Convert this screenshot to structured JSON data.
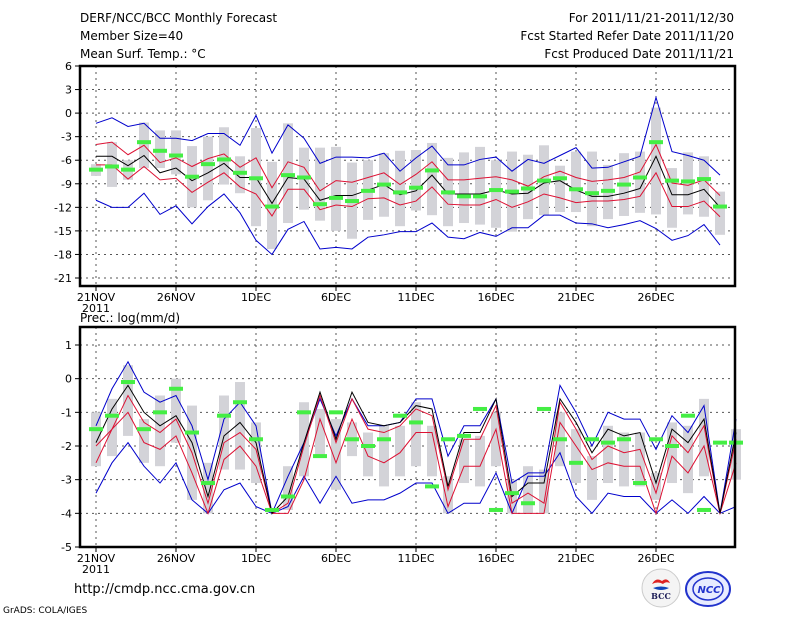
{
  "header": {
    "title": "DERF/NCC/BCC Monthly Forecast",
    "member_size": "Member Size=40",
    "period": "For 2011/11/21-2011/12/30",
    "started_date": "Fcst Started Refer Date 2011/11/20",
    "produced_date": "Fcst Produced Date 2011/11/21"
  },
  "footer": {
    "url": "http://cmdp.ncc.cma.gov.cn",
    "credit": "GrADS: COLA/IGES",
    "logos": [
      {
        "name": "bcc-logo",
        "text": "BCC"
      },
      {
        "name": "ncc-logo",
        "text": "NCC"
      }
    ]
  },
  "colors": {
    "range": "#0000cc",
    "quartile": "#dd1133",
    "median": "#000000",
    "box": "#d3d3d8",
    "marker": "#44ee44",
    "grid": "#555555"
  },
  "chart_data": [
    {
      "type": "line",
      "title": "Mean Surf. Temp.: °C",
      "xlabel": "",
      "ylabel": "°C",
      "ylim": [
        -21,
        6
      ],
      "yticks": [
        6,
        3,
        0,
        -3,
        -6,
        -9,
        -12,
        -15,
        -18,
        -21
      ],
      "xtick_labels": [
        "21NOV",
        "26NOV",
        "1DEC",
        "6DEC",
        "11DEC",
        "16DEC",
        "21DEC",
        "26DEC"
      ],
      "xtick_year": "2011",
      "x_start": "2011-11-21",
      "days": 39,
      "grid": true,
      "series": [
        {
          "name": "max",
          "values": [
            -1.3,
            -0.6,
            -1.7,
            -1.3,
            -3.2,
            -3.2,
            -3.5,
            -2.6,
            -2.6,
            -4.1,
            -0.3,
            -5.1,
            -1.5,
            -3.2,
            -6.4,
            -5.6,
            -5.6,
            -5.7,
            -5.1,
            -7.4,
            -5.7,
            -4.2,
            -6.6,
            -6.6,
            -5.9,
            -5.6,
            -7.4,
            -5.9,
            -6.4,
            -5.4,
            -4.4,
            -7.0,
            -6.9,
            -6.2,
            -5.5,
            2.0,
            -4.9,
            -5.4,
            -6.0,
            -7.9
          ]
        },
        {
          "name": "q75",
          "values": [
            -4.0,
            -3.7,
            -5.3,
            -4.1,
            -6.3,
            -5.7,
            -6.8,
            -5.8,
            -5.2,
            -6.9,
            -5.7,
            -9.5,
            -6.2,
            -6.9,
            -9.9,
            -8.6,
            -8.8,
            -8.2,
            -7.6,
            -9.1,
            -7.8,
            -6.2,
            -8.5,
            -8.5,
            -8.3,
            -8.1,
            -8.5,
            -9.3,
            -8.1,
            -7.4,
            -8.2,
            -8.7,
            -8.5,
            -8.2,
            -7.5,
            -4.0,
            -8.9,
            -9.2,
            -8.5,
            -10.5
          ]
        },
        {
          "name": "median",
          "values": [
            -5.5,
            -5.5,
            -6.7,
            -5.4,
            -7.6,
            -7.0,
            -8.6,
            -7.6,
            -6.4,
            -8.2,
            -8.2,
            -11.5,
            -8.2,
            -8.4,
            -11.1,
            -10.5,
            -10.5,
            -9.8,
            -9.1,
            -10.4,
            -9.9,
            -7.9,
            -10.3,
            -10.3,
            -10.3,
            -9.8,
            -10.3,
            -10.2,
            -8.9,
            -8.6,
            -9.8,
            -10.6,
            -10.6,
            -10.2,
            -9.6,
            -5.5,
            -10.4,
            -10.4,
            -9.7,
            -12.0
          ]
        },
        {
          "name": "q25",
          "values": [
            -6.6,
            -6.6,
            -8.4,
            -6.8,
            -8.5,
            -8.3,
            -10.1,
            -8.8,
            -7.6,
            -9.4,
            -10.3,
            -13.1,
            -9.7,
            -9.7,
            -12.3,
            -11.7,
            -11.9,
            -10.9,
            -10.8,
            -11.7,
            -11.2,
            -9.4,
            -11.6,
            -11.7,
            -11.7,
            -11.0,
            -12.0,
            -11.3,
            -10.3,
            -10.8,
            -11.4,
            -11.2,
            -11.2,
            -11.0,
            -10.6,
            -7.6,
            -11.9,
            -11.9,
            -11.2,
            -13.2
          ]
        },
        {
          "name": "min",
          "values": [
            -11.1,
            -12.0,
            -12.0,
            -10.2,
            -12.9,
            -11.8,
            -14.1,
            -11.9,
            -10.3,
            -12.7,
            -16.2,
            -18.0,
            -14.8,
            -13.8,
            -17.3,
            -17.1,
            -17.3,
            -15.8,
            -15.5,
            -15.1,
            -15.1,
            -14.0,
            -15.8,
            -16.0,
            -15.2,
            -15.7,
            -14.6,
            -14.6,
            -13.0,
            -13.0,
            -14.0,
            -14.1,
            -14.6,
            -14.2,
            -13.7,
            -14.7,
            -16.2,
            -15.6,
            -14.2,
            -16.8
          ]
        },
        {
          "name": "ensemble_box_top",
          "values": [
            -6.5,
            -3.7,
            -6.0,
            -1.2,
            -2.2,
            -2.2,
            -4.2,
            -3.0,
            -1.8,
            -5.5,
            -1.9,
            -6.2,
            -1.3,
            -4.4,
            -4.4,
            -4.3,
            -6.3,
            -6.0,
            -5.1,
            -4.8,
            -4.7,
            -3.8,
            -5.7,
            -5.0,
            -4.3,
            -6.0,
            -4.9,
            -5.3,
            -4.1,
            -6.7,
            -4.9,
            -4.9,
            -6.6,
            -5.1,
            -4.9,
            0.7,
            -7.0,
            -5.0,
            -5.5,
            -10.0
          ]
        },
        {
          "name": "ensemble_box_bottom",
          "values": [
            -8.0,
            -9.4,
            -8.5,
            -7.0,
            -7.0,
            -7.8,
            -12.0,
            -11.1,
            -9.1,
            -10.2,
            -14.4,
            -17.3,
            -14.0,
            -12.3,
            -13.7,
            -15.0,
            -16.0,
            -13.6,
            -13.2,
            -14.4,
            -12.4,
            -13.0,
            -14.4,
            -14.0,
            -14.2,
            -14.6,
            -15.1,
            -13.5,
            -13.0,
            -12.6,
            -12.6,
            -14.4,
            -13.5,
            -13.1,
            -12.7,
            -12.9,
            -14.6,
            -12.9,
            -13.2,
            -15.5
          ]
        },
        {
          "name": "observed_marker",
          "values": [
            -7.2,
            -6.8,
            -7.2,
            -3.7,
            -4.8,
            -5.4,
            -8.1,
            -6.5,
            -5.9,
            -7.6,
            -8.3,
            -11.9,
            -7.9,
            -8.2,
            -11.6,
            -10.8,
            -11.2,
            -9.9,
            -9.1,
            -10.1,
            -9.5,
            -7.3,
            -10.1,
            -10.6,
            -10.6,
            -9.8,
            -10.0,
            -9.6,
            -8.6,
            -8.3,
            -9.7,
            -10.2,
            -9.9,
            -9.1,
            -8.2,
            -3.7,
            -8.6,
            -8.7,
            -8.4,
            -11.9
          ]
        }
      ]
    },
    {
      "type": "line",
      "title": "Prec.: log(mm/d)",
      "xlabel": "",
      "ylabel": "log(mm/d)",
      "ylim": [
        -5,
        1.4
      ],
      "yticks": [
        1,
        0,
        -1,
        -2,
        -3,
        -4,
        -5
      ],
      "xtick_labels": [
        "21NOV",
        "26NOV",
        "1DEC",
        "6DEC",
        "11DEC",
        "16DEC",
        "21DEC",
        "26DEC"
      ],
      "xtick_year": "2011",
      "x_start": "2011-11-21",
      "days": 39,
      "grid": true,
      "series": [
        {
          "name": "max",
          "values": [
            -1.4,
            -0.3,
            0.5,
            -0.4,
            -0.7,
            -0.5,
            -1.4,
            -3.0,
            -1.2,
            -0.7,
            -1.4,
            -4.0,
            -2.9,
            -1.9,
            -0.6,
            -1.7,
            -0.6,
            -1.4,
            -1.4,
            -1.3,
            -0.6,
            -0.6,
            -2.3,
            -1.4,
            -1.4,
            -0.6,
            -3.1,
            -2.8,
            -2.8,
            -0.2,
            -1.0,
            -2.0,
            -1.0,
            -1.2,
            -1.2,
            -2.1,
            -1.1,
            -1.6,
            -0.8,
            -4.0,
            -1.2
          ]
        },
        {
          "name": "q75",
          "values": [
            -2.0,
            -1.5,
            -0.5,
            -1.3,
            -1.6,
            -1.2,
            -2.2,
            -3.7,
            -1.9,
            -1.6,
            -2.1,
            -4.0,
            -3.7,
            -2.0,
            -0.5,
            -1.9,
            -0.6,
            -1.5,
            -1.6,
            -1.4,
            -0.9,
            -1.1,
            -3.3,
            -1.8,
            -1.8,
            -0.8,
            -3.7,
            -3.4,
            -3.7,
            -0.7,
            -1.5,
            -2.4,
            -2.0,
            -2.2,
            -2.1,
            -3.4,
            -1.7,
            -2.2,
            -1.4,
            -4.0,
            -1.8
          ]
        },
        {
          "name": "median",
          "values": [
            -1.9,
            -0.9,
            -0.2,
            -1.0,
            -1.4,
            -1.1,
            -1.9,
            -3.5,
            -1.7,
            -1.3,
            -1.9,
            -4.0,
            -3.5,
            -1.9,
            -0.4,
            -1.8,
            -0.4,
            -1.3,
            -1.4,
            -1.3,
            -0.8,
            -0.9,
            -3.2,
            -1.6,
            -1.6,
            -0.6,
            -3.5,
            -3.1,
            -3.1,
            -0.6,
            -1.3,
            -2.2,
            -1.5,
            -1.7,
            -1.6,
            -3.1,
            -1.5,
            -1.9,
            -1.2,
            -4.0,
            -1.6
          ]
        },
        {
          "name": "q25",
          "values": [
            -2.5,
            -1.5,
            -1.0,
            -1.9,
            -2.1,
            -1.7,
            -2.8,
            -4.0,
            -2.4,
            -2.0,
            -2.6,
            -4.0,
            -4.0,
            -3.0,
            -1.2,
            -2.5,
            -1.2,
            -2.3,
            -2.5,
            -2.2,
            -1.6,
            -1.6,
            -3.8,
            -2.6,
            -2.6,
            -1.5,
            -4.0,
            -4.0,
            -4.0,
            -1.3,
            -2.0,
            -2.7,
            -2.5,
            -2.6,
            -2.6,
            -4.0,
            -2.3,
            -2.8,
            -2.0,
            -4.0,
            -2.5
          ]
        },
        {
          "name": "min",
          "values": [
            -3.4,
            -2.5,
            -1.9,
            -2.6,
            -3.1,
            -2.5,
            -3.6,
            -4.0,
            -3.3,
            -3.1,
            -3.8,
            -4.0,
            -3.8,
            -2.9,
            -3.7,
            -2.9,
            -3.7,
            -3.6,
            -3.6,
            -3.4,
            -3.1,
            -3.1,
            -4.0,
            -3.7,
            -3.7,
            -2.8,
            -4.0,
            -2.9,
            -2.9,
            -2.2,
            -3.5,
            -4.0,
            -3.4,
            -3.5,
            -3.5,
            -4.0,
            -3.6,
            -4.0,
            -3.5,
            -4.0,
            -3.8
          ]
        },
        {
          "name": "ensemble_box_top",
          "values": [
            -1.0,
            -0.6,
            0.4,
            -1.2,
            -0.5,
            0.0,
            -0.8,
            -2.5,
            -0.5,
            -0.1,
            -1.3,
            -4.0,
            -2.6,
            -0.7,
            -0.9,
            -1.2,
            -1.3,
            -1.6,
            -1.4,
            -1.4,
            -0.7,
            -1.4,
            -2.9,
            -1.8,
            -1.7,
            -1.0,
            -3.0,
            -2.6,
            -2.7,
            -1.0,
            -1.5,
            -2.3,
            -1.4,
            -1.6,
            -1.6,
            -2.8,
            -1.3,
            -1.4,
            -0.6,
            -4.0,
            -1.5
          ]
        },
        {
          "name": "ensemble_box_bottom",
          "values": [
            -2.6,
            -2.3,
            -1.7,
            -2.5,
            -2.6,
            -1.9,
            -3.6,
            -4.0,
            -2.7,
            -2.7,
            -3.1,
            -4.0,
            -3.9,
            -2.9,
            -2.3,
            -3.3,
            -2.3,
            -2.9,
            -3.2,
            -2.9,
            -2.6,
            -2.9,
            -4.0,
            -3.1,
            -3.2,
            -2.6,
            -4.0,
            -4.0,
            -4.0,
            -2.6,
            -3.1,
            -3.6,
            -3.1,
            -3.2,
            -3.2,
            -3.6,
            -3.1,
            -3.4,
            -2.9,
            -4.0,
            -3.0
          ]
        },
        {
          "name": "observed_marker",
          "values": [
            -1.5,
            -1.1,
            -0.1,
            -1.5,
            -1.0,
            -0.3,
            -1.6,
            -3.1,
            -1.1,
            -0.7,
            -1.8,
            -3.9,
            -3.5,
            -1.0,
            -2.3,
            -1.0,
            -1.8,
            -2.0,
            -1.8,
            -1.1,
            -1.3,
            -3.2,
            -1.8,
            -1.7,
            -0.9,
            -3.9,
            -3.4,
            -3.7,
            -0.9,
            -1.8,
            -2.5,
            -1.8,
            -1.9,
            -1.8,
            -3.1,
            -1.8,
            -2.0,
            -1.1,
            -3.9,
            -1.9,
            -1.9
          ]
        }
      ]
    }
  ]
}
